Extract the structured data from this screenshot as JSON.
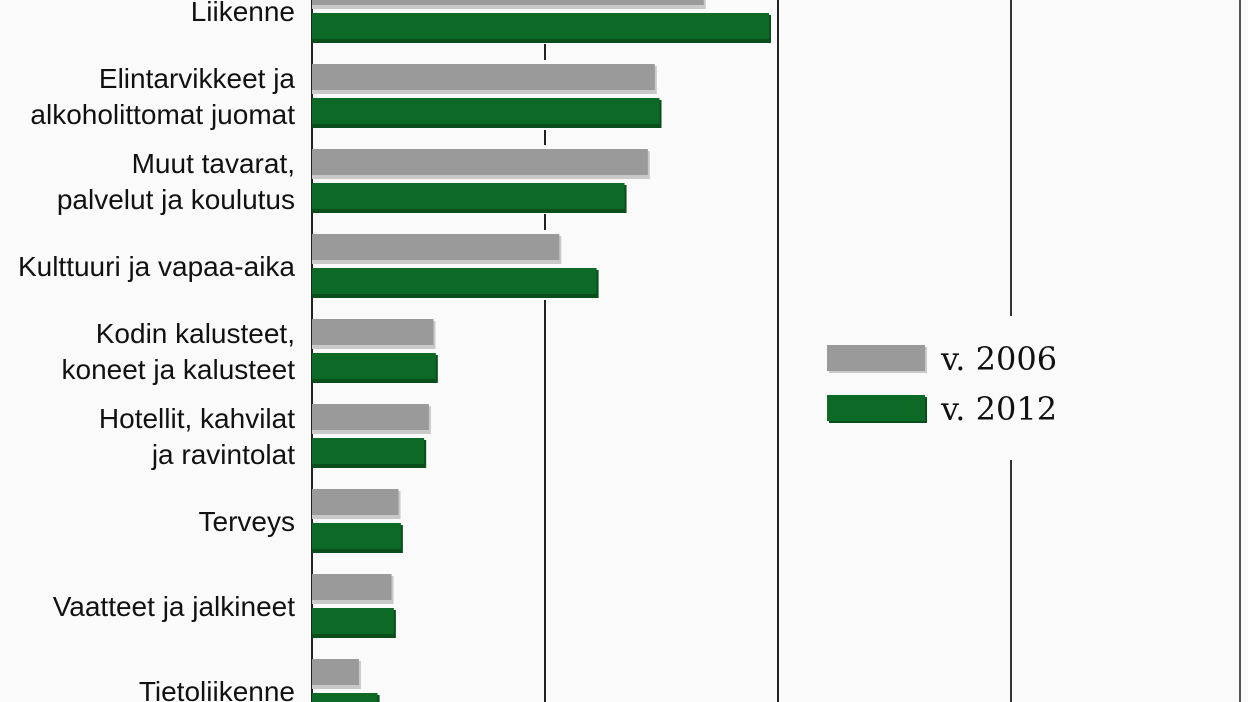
{
  "chart_data": {
    "type": "bar",
    "orientation": "horizontal",
    "categories": [
      [
        "Liikenne"
      ],
      [
        "Elintarvikkeet ja",
        "alkoholittomat juomat"
      ],
      [
        "Muut tavarat,",
        "palvelut ja koulutus"
      ],
      [
        "Kulttuuri ja vapaa-aika"
      ],
      [
        "Kodin kalusteet,",
        "koneet ja kalusteet"
      ],
      [
        "Hotellit, kahvilat",
        "ja ravintolat"
      ],
      [
        "Terveys"
      ],
      [
        "Vaatteet ja jalkineet"
      ],
      [
        "Tietoliikenne"
      ]
    ],
    "series": [
      {
        "name": "v. 2006",
        "color": "#9a9a9a",
        "values": [
          16.9,
          14.8,
          14.5,
          10.7,
          5.3,
          5.1,
          3.8,
          3.5,
          2.1
        ]
      },
      {
        "name": "v. 2012",
        "color": "#0c6a26",
        "values": [
          19.7,
          15.0,
          13.5,
          12.3,
          5.4,
          4.9,
          3.9,
          3.6,
          2.9
        ]
      }
    ],
    "xlim": [
      0,
      40
    ],
    "gridlines": [
      10,
      20,
      30,
      40
    ],
    "legend": "right"
  }
}
